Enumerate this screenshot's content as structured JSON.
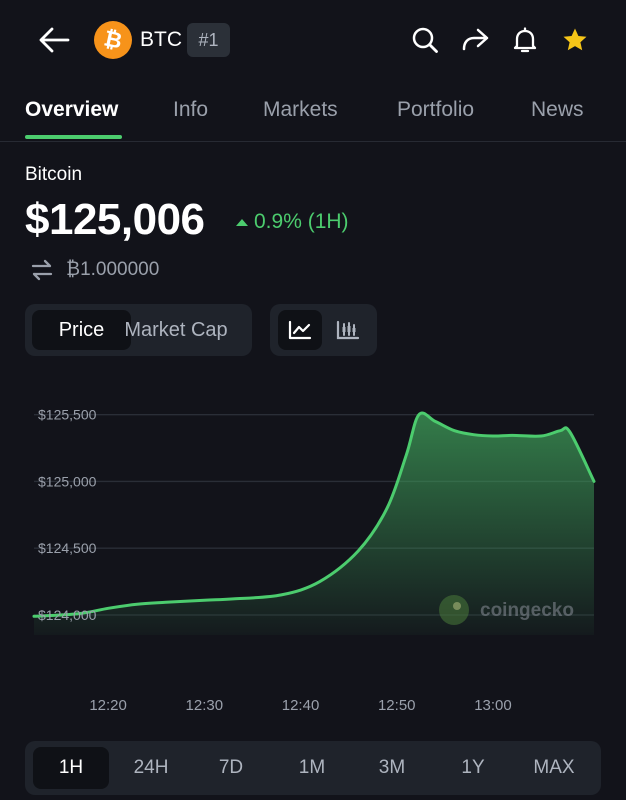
{
  "header": {
    "coin_symbol": "BTC",
    "rank": "#1",
    "coin_logo_glyph": "₿",
    "icons": [
      "back-arrow-icon",
      "search-icon",
      "share-icon",
      "bell-icon",
      "star-icon"
    ],
    "star_color": "#f5c518"
  },
  "tabs": [
    {
      "label": "Overview",
      "active": true
    },
    {
      "label": "Info"
    },
    {
      "label": "Markets"
    },
    {
      "label": "Portfolio"
    },
    {
      "label": "News"
    }
  ],
  "coin": {
    "name": "Bitcoin",
    "price": "$125,006",
    "change": "0.9% (1H)",
    "change_color": "#4ccc6e",
    "btc_amount": "₿1.000000"
  },
  "chart_toggle": {
    "price_label": "Price",
    "market_cap_label": "Market Cap",
    "selected": "Price",
    "view_icons": [
      "line-chart-icon",
      "candlestick-chart-icon"
    ],
    "selected_view": "line"
  },
  "chart_data": {
    "type": "area",
    "x_tick_labels": [
      "12:20",
      "12:30",
      "12:40",
      "12:50",
      "13:00"
    ],
    "y_tick_labels": [
      "$125,500",
      "$125,000",
      "$124,500",
      "$124,000"
    ],
    "y_ticks": [
      125500,
      125000,
      124500,
      124000
    ],
    "x_range_minutes": [
      12.3,
      70.5
    ],
    "ylim": [
      123850,
      125550
    ],
    "grid": true,
    "line_color": "#4ccc6e",
    "watermark": "coingecko",
    "series": [
      {
        "x": [
          12.3,
          17,
          20,
          23,
          26,
          30,
          33,
          38,
          42,
          46,
          49,
          51,
          52.3,
          54,
          56,
          58,
          60,
          62,
          65,
          67,
          68,
          70.5
        ],
        "values": [
          123990,
          124010,
          124050,
          124080,
          124095,
          124110,
          124120,
          124150,
          124250,
          124480,
          124800,
          125200,
          125500,
          125450,
          125380,
          125350,
          125340,
          125345,
          125340,
          125380,
          125370,
          125000
        ]
      }
    ]
  },
  "ranges": [
    {
      "label": "1H",
      "active": true
    },
    {
      "label": "24H"
    },
    {
      "label": "7D"
    },
    {
      "label": "1M"
    },
    {
      "label": "3M"
    },
    {
      "label": "1Y"
    },
    {
      "label": "MAX"
    }
  ]
}
